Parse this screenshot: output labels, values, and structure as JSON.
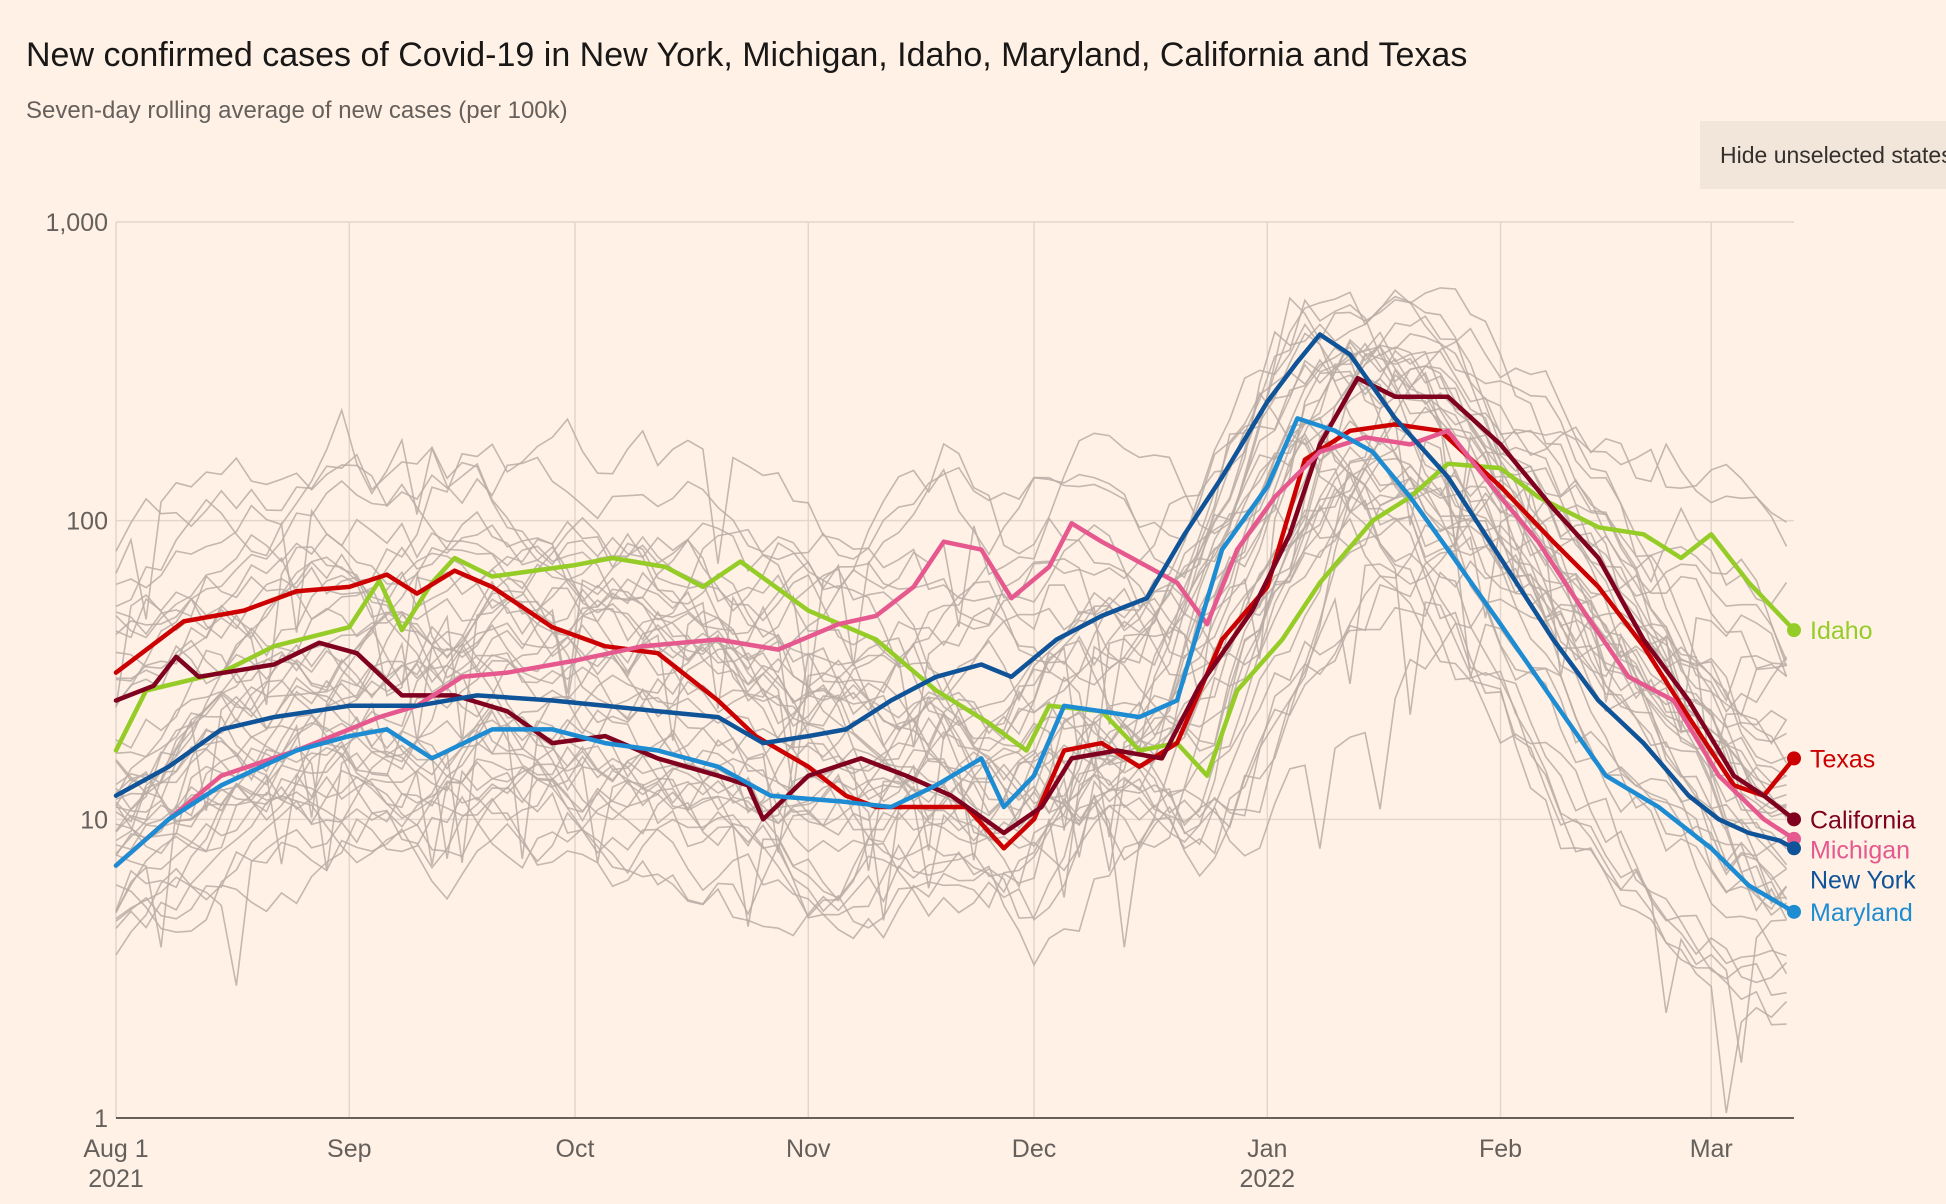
{
  "title": "New confirmed cases of Covid-19 in New York, Michigan, Idaho, Maryland, California and Texas",
  "subtitle": "Seven-day rolling average of new cases (per 100k)",
  "toggle_button": "Hide unselected states",
  "chart_data": {
    "type": "line",
    "yscale": "log",
    "ylim": [
      1,
      1000
    ],
    "yticks": [
      {
        "value": 1,
        "label": "1"
      },
      {
        "value": 10,
        "label": "10"
      },
      {
        "value": 100,
        "label": "100"
      },
      {
        "value": 1000,
        "label": "1,000"
      }
    ],
    "xlim": [
      "2021-08-01",
      "2022-03-12"
    ],
    "xticks": [
      {
        "date": "2021-08-01",
        "label": "Aug 1",
        "sublabel": "2021"
      },
      {
        "date": "2021-09-01",
        "label": "Sep",
        "sublabel": ""
      },
      {
        "date": "2021-10-01",
        "label": "Oct",
        "sublabel": ""
      },
      {
        "date": "2021-11-01",
        "label": "Nov",
        "sublabel": ""
      },
      {
        "date": "2021-12-01",
        "label": "Dec",
        "sublabel": ""
      },
      {
        "date": "2022-01-01",
        "label": "Jan",
        "sublabel": "2022"
      },
      {
        "date": "2022-02-01",
        "label": "Feb",
        "sublabel": ""
      },
      {
        "date": "2022-03-01",
        "label": "Mar",
        "sublabel": ""
      }
    ],
    "grid": true,
    "background_series_color": "#B8ADA6",
    "series": [
      {
        "name": "Idaho",
        "color": "#96CC28",
        "points": [
          [
            "2021-08-01",
            17
          ],
          [
            "2021-08-05",
            27
          ],
          [
            "2021-08-15",
            31
          ],
          [
            "2021-08-22",
            38
          ],
          [
            "2021-09-01",
            44
          ],
          [
            "2021-09-05",
            63
          ],
          [
            "2021-09-08",
            43
          ],
          [
            "2021-09-12",
            62
          ],
          [
            "2021-09-15",
            75
          ],
          [
            "2021-09-20",
            65
          ],
          [
            "2021-10-01",
            71
          ],
          [
            "2021-10-06",
            75
          ],
          [
            "2021-10-13",
            70
          ],
          [
            "2021-10-18",
            60
          ],
          [
            "2021-10-23",
            73
          ],
          [
            "2021-11-01",
            50
          ],
          [
            "2021-11-10",
            40
          ],
          [
            "2021-11-18",
            27
          ],
          [
            "2021-11-25",
            21
          ],
          [
            "2021-11-30",
            17
          ],
          [
            "2021-12-03",
            24
          ],
          [
            "2021-12-10",
            23
          ],
          [
            "2021-12-15",
            17
          ],
          [
            "2021-12-20",
            18
          ],
          [
            "2021-12-24",
            14
          ],
          [
            "2021-12-28",
            27
          ],
          [
            "2022-01-03",
            40
          ],
          [
            "2022-01-08",
            62
          ],
          [
            "2022-01-15",
            100
          ],
          [
            "2022-01-20",
            120
          ],
          [
            "2022-01-25",
            155
          ],
          [
            "2022-02-01",
            150
          ],
          [
            "2022-02-06",
            120
          ],
          [
            "2022-02-14",
            95
          ],
          [
            "2022-02-20",
            90
          ],
          [
            "2022-02-25",
            75
          ],
          [
            "2022-03-01",
            90
          ],
          [
            "2022-03-06",
            62
          ],
          [
            "2022-03-12",
            43
          ]
        ]
      },
      {
        "name": "Texas",
        "color": "#CC0000",
        "points": [
          [
            "2021-08-01",
            31
          ],
          [
            "2021-08-10",
            46
          ],
          [
            "2021-08-18",
            50
          ],
          [
            "2021-08-25",
            58
          ],
          [
            "2021-09-01",
            60
          ],
          [
            "2021-09-06",
            66
          ],
          [
            "2021-09-10",
            57
          ],
          [
            "2021-09-15",
            68
          ],
          [
            "2021-09-20",
            60
          ],
          [
            "2021-09-28",
            44
          ],
          [
            "2021-10-05",
            38
          ],
          [
            "2021-10-12",
            36
          ],
          [
            "2021-10-20",
            25
          ],
          [
            "2021-10-25",
            19
          ],
          [
            "2021-11-01",
            15
          ],
          [
            "2021-11-06",
            12
          ],
          [
            "2021-11-10",
            11
          ],
          [
            "2021-11-17",
            11
          ],
          [
            "2021-11-22",
            11
          ],
          [
            "2021-11-27",
            8
          ],
          [
            "2021-12-01",
            10
          ],
          [
            "2021-12-05",
            17
          ],
          [
            "2021-12-10",
            18
          ],
          [
            "2021-12-15",
            15
          ],
          [
            "2021-12-20",
            18
          ],
          [
            "2021-12-26",
            40
          ],
          [
            "2022-01-01",
            60
          ],
          [
            "2022-01-06",
            160
          ],
          [
            "2022-01-12",
            200
          ],
          [
            "2022-01-18",
            210
          ],
          [
            "2022-01-24",
            200
          ],
          [
            "2022-02-01",
            130
          ],
          [
            "2022-02-08",
            85
          ],
          [
            "2022-02-14",
            60
          ],
          [
            "2022-02-20",
            38
          ],
          [
            "2022-02-26",
            22
          ],
          [
            "2022-03-04",
            13
          ],
          [
            "2022-03-08",
            12
          ],
          [
            "2022-03-12",
            16
          ]
        ]
      },
      {
        "name": "California",
        "color": "#800020",
        "points": [
          [
            "2021-08-01",
            25
          ],
          [
            "2021-08-06",
            28
          ],
          [
            "2021-08-09",
            35
          ],
          [
            "2021-08-12",
            30
          ],
          [
            "2021-08-22",
            33
          ],
          [
            "2021-08-28",
            39
          ],
          [
            "2021-09-02",
            36
          ],
          [
            "2021-09-08",
            26
          ],
          [
            "2021-09-15",
            26
          ],
          [
            "2021-09-22",
            23
          ],
          [
            "2021-09-28",
            18
          ],
          [
            "2021-10-05",
            19
          ],
          [
            "2021-10-12",
            16
          ],
          [
            "2021-10-20",
            14
          ],
          [
            "2021-10-24",
            13
          ],
          [
            "2021-10-26",
            10
          ],
          [
            "2021-11-01",
            14
          ],
          [
            "2021-11-08",
            16
          ],
          [
            "2021-11-14",
            14
          ],
          [
            "2021-11-20",
            12
          ],
          [
            "2021-11-27",
            9
          ],
          [
            "2021-12-02",
            11
          ],
          [
            "2021-12-06",
            16
          ],
          [
            "2021-12-12",
            17
          ],
          [
            "2021-12-18",
            16
          ],
          [
            "2021-12-23",
            28
          ],
          [
            "2021-12-30",
            50
          ],
          [
            "2022-01-04",
            90
          ],
          [
            "2022-01-08",
            180
          ],
          [
            "2022-01-13",
            300
          ],
          [
            "2022-01-18",
            260
          ],
          [
            "2022-01-25",
            260
          ],
          [
            "2022-02-01",
            180
          ],
          [
            "2022-02-08",
            110
          ],
          [
            "2022-02-14",
            75
          ],
          [
            "2022-02-20",
            40
          ],
          [
            "2022-02-26",
            25
          ],
          [
            "2022-03-04",
            14
          ],
          [
            "2022-03-08",
            12
          ],
          [
            "2022-03-12",
            10
          ]
        ]
      },
      {
        "name": "Michigan",
        "color": "#E5598E",
        "points": [
          [
            "2021-08-01",
            7
          ],
          [
            "2021-08-08",
            10
          ],
          [
            "2021-08-15",
            14
          ],
          [
            "2021-08-25",
            17
          ],
          [
            "2021-09-01",
            20
          ],
          [
            "2021-09-05",
            22
          ],
          [
            "2021-09-10",
            24
          ],
          [
            "2021-09-16",
            30
          ],
          [
            "2021-09-22",
            31
          ],
          [
            "2021-10-01",
            34
          ],
          [
            "2021-10-10",
            38
          ],
          [
            "2021-10-20",
            40
          ],
          [
            "2021-10-28",
            37
          ],
          [
            "2021-11-05",
            45
          ],
          [
            "2021-11-10",
            48
          ],
          [
            "2021-11-15",
            60
          ],
          [
            "2021-11-19",
            85
          ],
          [
            "2021-11-24",
            80
          ],
          [
            "2021-11-28",
            55
          ],
          [
            "2021-12-03",
            70
          ],
          [
            "2021-12-06",
            98
          ],
          [
            "2021-12-10",
            85
          ],
          [
            "2021-12-14",
            75
          ],
          [
            "2021-12-20",
            62
          ],
          [
            "2021-12-24",
            45
          ],
          [
            "2021-12-28",
            80
          ],
          [
            "2022-01-02",
            120
          ],
          [
            "2022-01-08",
            170
          ],
          [
            "2022-01-14",
            190
          ],
          [
            "2022-01-20",
            180
          ],
          [
            "2022-01-25",
            200
          ],
          [
            "2022-02-01",
            120
          ],
          [
            "2022-02-06",
            85
          ],
          [
            "2022-02-12",
            50
          ],
          [
            "2022-02-18",
            30
          ],
          [
            "2022-02-24",
            25
          ],
          [
            "2022-03-02",
            14
          ],
          [
            "2022-03-08",
            10
          ],
          [
            "2022-03-12",
            8.6
          ]
        ]
      },
      {
        "name": "New York",
        "color": "#0F5499",
        "points": [
          [
            "2021-08-01",
            12
          ],
          [
            "2021-08-08",
            15
          ],
          [
            "2021-08-15",
            20
          ],
          [
            "2021-08-22",
            22
          ],
          [
            "2021-09-01",
            24
          ],
          [
            "2021-09-10",
            24
          ],
          [
            "2021-09-18",
            26
          ],
          [
            "2021-09-28",
            25
          ],
          [
            "2021-10-05",
            24
          ],
          [
            "2021-10-12",
            23
          ],
          [
            "2021-10-20",
            22
          ],
          [
            "2021-10-26",
            18
          ],
          [
            "2021-11-01",
            19
          ],
          [
            "2021-11-06",
            20
          ],
          [
            "2021-11-12",
            25
          ],
          [
            "2021-11-18",
            30
          ],
          [
            "2021-11-24",
            33
          ],
          [
            "2021-11-28",
            30
          ],
          [
            "2021-12-04",
            40
          ],
          [
            "2021-12-10",
            48
          ],
          [
            "2021-12-16",
            55
          ],
          [
            "2021-12-21",
            90
          ],
          [
            "2021-12-26",
            140
          ],
          [
            "2022-01-01",
            250
          ],
          [
            "2022-01-05",
            340
          ],
          [
            "2022-01-08",
            420
          ],
          [
            "2022-01-12",
            360
          ],
          [
            "2022-01-18",
            220
          ],
          [
            "2022-01-25",
            140
          ],
          [
            "2022-02-01",
            75
          ],
          [
            "2022-02-08",
            40
          ],
          [
            "2022-02-14",
            25
          ],
          [
            "2022-02-20",
            18
          ],
          [
            "2022-02-26",
            12
          ],
          [
            "2022-03-02",
            10
          ],
          [
            "2022-03-06",
            9
          ],
          [
            "2022-03-10",
            8.5
          ],
          [
            "2022-03-12",
            8
          ]
        ]
      },
      {
        "name": "Maryland",
        "color": "#1D8CD3",
        "points": [
          [
            "2021-08-01",
            7
          ],
          [
            "2021-08-08",
            10
          ],
          [
            "2021-08-15",
            13
          ],
          [
            "2021-08-25",
            17
          ],
          [
            "2021-09-01",
            19
          ],
          [
            "2021-09-06",
            20
          ],
          [
            "2021-09-12",
            16
          ],
          [
            "2021-09-20",
            20
          ],
          [
            "2021-09-28",
            20
          ],
          [
            "2021-10-05",
            18
          ],
          [
            "2021-10-12",
            17
          ],
          [
            "2021-10-20",
            15
          ],
          [
            "2021-10-27",
            12
          ],
          [
            "2021-11-05",
            11.5
          ],
          [
            "2021-11-12",
            11
          ],
          [
            "2021-11-18",
            13
          ],
          [
            "2021-11-24",
            16
          ],
          [
            "2021-11-27",
            11
          ],
          [
            "2021-12-01",
            14
          ],
          [
            "2021-12-05",
            24
          ],
          [
            "2021-12-10",
            23
          ],
          [
            "2021-12-15",
            22
          ],
          [
            "2021-12-20",
            25
          ],
          [
            "2021-12-26",
            80
          ],
          [
            "2022-01-01",
            130
          ],
          [
            "2022-01-05",
            220
          ],
          [
            "2022-01-10",
            200
          ],
          [
            "2022-01-15",
            170
          ],
          [
            "2022-01-20",
            120
          ],
          [
            "2022-01-25",
            80
          ],
          [
            "2022-02-01",
            45
          ],
          [
            "2022-02-08",
            25
          ],
          [
            "2022-02-15",
            14
          ],
          [
            "2022-02-22",
            11
          ],
          [
            "2022-03-01",
            8
          ],
          [
            "2022-03-06",
            6
          ],
          [
            "2022-03-12",
            4.9
          ]
        ]
      }
    ]
  }
}
